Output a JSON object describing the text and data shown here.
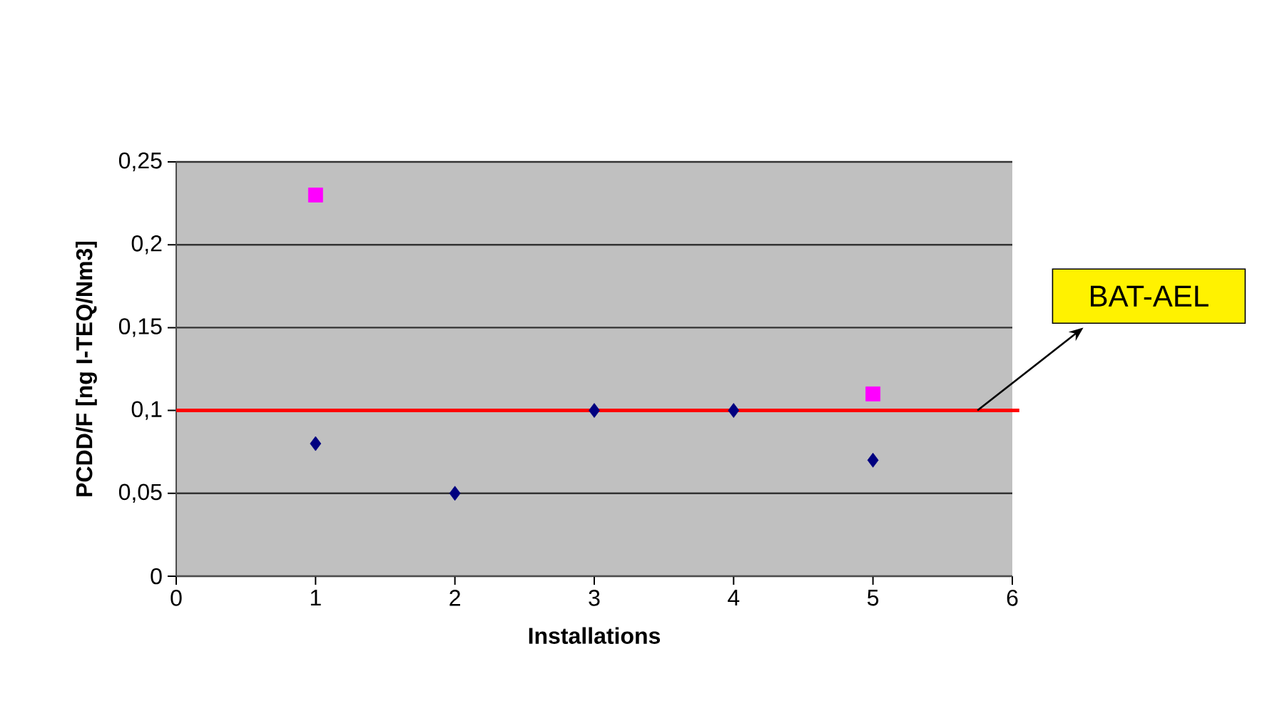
{
  "chart_data": {
    "type": "scatter",
    "xlabel": "Installations",
    "ylabel": "PCDD/F [ng I-TEQ/Nm3]",
    "x": [
      1,
      2,
      3,
      4,
      5
    ],
    "series": [
      {
        "color": "#000080",
        "marker": "diamond",
        "values": [
          0.08,
          0.05,
          0.1,
          0.1,
          0.07
        ]
      },
      {
        "color": "#ff00ff",
        "marker": "square",
        "values": [
          0.23,
          null,
          null,
          null,
          0.11
        ]
      }
    ],
    "xlim": [
      0,
      6
    ],
    "xticks": [
      0,
      1,
      2,
      3,
      4,
      5,
      6
    ],
    "ylim": [
      0,
      0.25
    ],
    "yticks": [
      {
        "value": 0,
        "label": "0"
      },
      {
        "value": 0.05,
        "label": "0,05"
      },
      {
        "value": 0.1,
        "label": "0,1"
      },
      {
        "value": 0.15,
        "label": "0,15"
      },
      {
        "value": 0.2,
        "label": "0,2"
      },
      {
        "value": 0.25,
        "label": "0,25"
      }
    ],
    "grid": "y",
    "ref_lines": [
      {
        "axis": "y",
        "value": 0.1,
        "label": "BAT-AEL",
        "color": "#ff0000"
      }
    ]
  }
}
